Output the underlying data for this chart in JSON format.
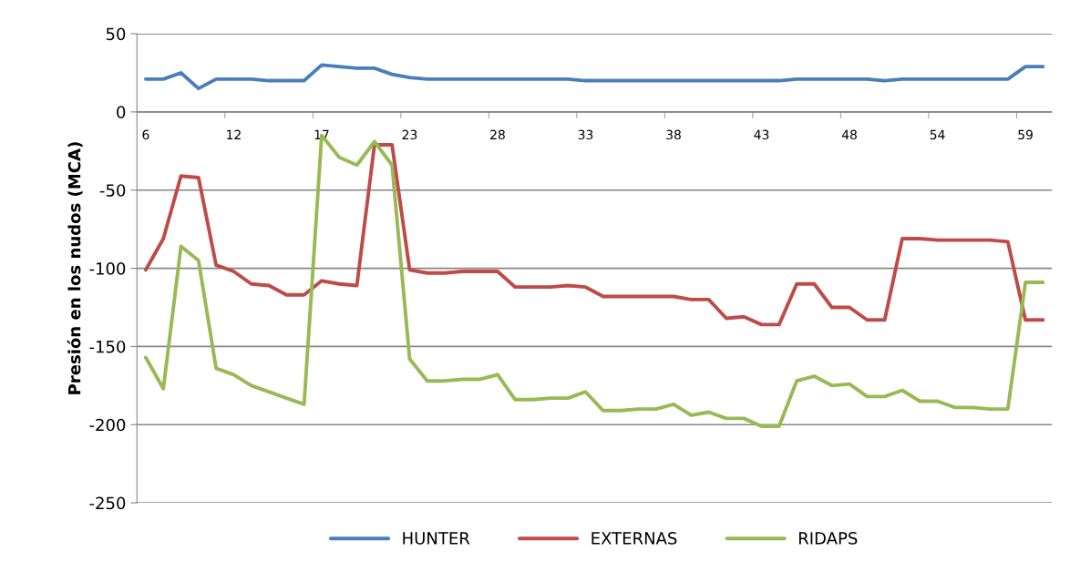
{
  "chart_data": {
    "type": "line",
    "ylabel": "Presión en los nudos (MCA)",
    "categories": [
      "6",
      null,
      null,
      null,
      null,
      "12",
      null,
      null,
      null,
      null,
      "17",
      null,
      null,
      null,
      null,
      "23",
      null,
      null,
      null,
      null,
      "28",
      null,
      null,
      null,
      null,
      "33",
      null,
      null,
      null,
      null,
      "38",
      null,
      null,
      null,
      null,
      "43",
      null,
      null,
      null,
      null,
      "48",
      null,
      null,
      null,
      null,
      "54",
      null,
      null,
      null,
      null,
      "59",
      null
    ],
    "series": [
      {
        "name": "HUNTER",
        "color": "#4a7ebb",
        "values": [
          21,
          21,
          25,
          15,
          21,
          21,
          21,
          20,
          20,
          20,
          30,
          29,
          28,
          28,
          24,
          22,
          21,
          21,
          21,
          21,
          21,
          21,
          21,
          21,
          21,
          20,
          20,
          20,
          20,
          20,
          20,
          20,
          20,
          20,
          20,
          20,
          20,
          21,
          21,
          21,
          21,
          21,
          20,
          21,
          21,
          21,
          21,
          21,
          21,
          21,
          29,
          29
        ]
      },
      {
        "name": "EXTERNAS",
        "color": "#be4b48",
        "values": [
          -101,
          -81,
          -41,
          -42,
          -98,
          -102,
          -110,
          -111,
          -117,
          -117,
          -108,
          -110,
          -111,
          -21,
          -21,
          -101,
          -103,
          -103,
          -102,
          -102,
          -102,
          -112,
          -112,
          -112,
          -111,
          -112,
          -118,
          -118,
          -118,
          -118,
          -118,
          -120,
          -120,
          -132,
          -131,
          -136,
          -136,
          -110,
          -110,
          -125,
          -125,
          -133,
          -133,
          -81,
          -81,
          -82,
          -82,
          -82,
          -82,
          -83,
          -133,
          -133
        ]
      },
      {
        "name": "RIDAPS",
        "color": "#98b954",
        "values": [
          -157,
          -177,
          -86,
          -95,
          -164,
          -168,
          -175,
          -179,
          -183,
          -187,
          -15,
          -29,
          -34,
          -19,
          -34,
          -158,
          -172,
          -172,
          -171,
          -171,
          -168,
          -184,
          -184,
          -183,
          -183,
          -179,
          -191,
          -191,
          -190,
          -190,
          -187,
          -194,
          -192,
          -196,
          -196,
          -201,
          -201,
          -172,
          -169,
          -175,
          -174,
          -182,
          -182,
          -178,
          -185,
          -185,
          -189,
          -189,
          -190,
          -190,
          -109,
          -109
        ]
      }
    ],
    "ylim": [
      -250,
      50
    ],
    "yticks": [
      -250,
      -200,
      -150,
      -100,
      -50,
      0,
      50
    ],
    "grid": "y",
    "legend": "bottom",
    "line_style": "solid",
    "marker": "none"
  }
}
